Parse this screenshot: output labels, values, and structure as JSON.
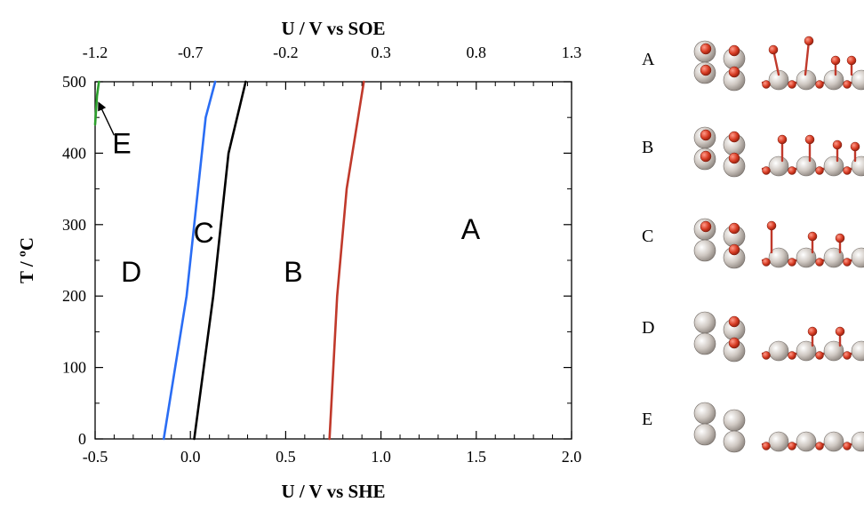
{
  "chart_data": {
    "type": "line",
    "xlabel_bottom": "U / V vs SHE",
    "xlabel_top": "U / V vs SOE",
    "ylabel": "T / ºC",
    "xlim": [
      -0.5,
      2.0
    ],
    "ylim": [
      0,
      500
    ],
    "x_ticks_bottom": [
      -0.5,
      0.0,
      0.5,
      1.0,
      1.5,
      2.0
    ],
    "x_tick_labels_bottom": [
      "-0.5",
      "0.0",
      "0.5",
      "1.0",
      "1.5",
      "2.0"
    ],
    "x_ticks_top_positions_she": [
      -0.5,
      0.0,
      0.5,
      1.0,
      1.5,
      2.0
    ],
    "x_tick_labels_top": [
      "-1.2",
      "-0.7",
      "-0.2",
      "0.3",
      "0.8",
      "1.3"
    ],
    "y_ticks": [
      0,
      100,
      200,
      300,
      400,
      500
    ],
    "y_tick_labels": [
      "0",
      "100",
      "200",
      "300",
      "400",
      "500"
    ],
    "series": [
      {
        "color": "#2a6df4",
        "x": [
          -0.14,
          -0.02,
          0.02,
          0.08,
          0.13
        ],
        "y": [
          0,
          200,
          300,
          450,
          500
        ]
      },
      {
        "color": "#000000",
        "x": [
          0.02,
          0.12,
          0.2,
          0.29
        ],
        "y": [
          0,
          200,
          400,
          500
        ]
      },
      {
        "color": "#c0392b",
        "x": [
          0.73,
          0.77,
          0.82,
          0.91
        ],
        "y": [
          0,
          200,
          350,
          500
        ]
      },
      {
        "color": "#2ca02c",
        "x": [
          -0.5,
          -0.49,
          -0.48
        ],
        "y": [
          440,
          480,
          500
        ]
      }
    ],
    "region_labels": [
      {
        "text": "A",
        "x": 1.47,
        "y": 280
      },
      {
        "text": "B",
        "x": 0.54,
        "y": 220
      },
      {
        "text": "C",
        "x": 0.07,
        "y": 275
      },
      {
        "text": "D",
        "x": -0.31,
        "y": 220
      },
      {
        "text": "E",
        "x": -0.36,
        "y": 400
      }
    ],
    "annotation_arrow": {
      "from": [
        -0.4,
        425
      ],
      "to": [
        -0.48,
        470
      ]
    },
    "grid": false
  },
  "right_panel": {
    "labels": [
      "A",
      "B",
      "C",
      "D",
      "E"
    ]
  }
}
